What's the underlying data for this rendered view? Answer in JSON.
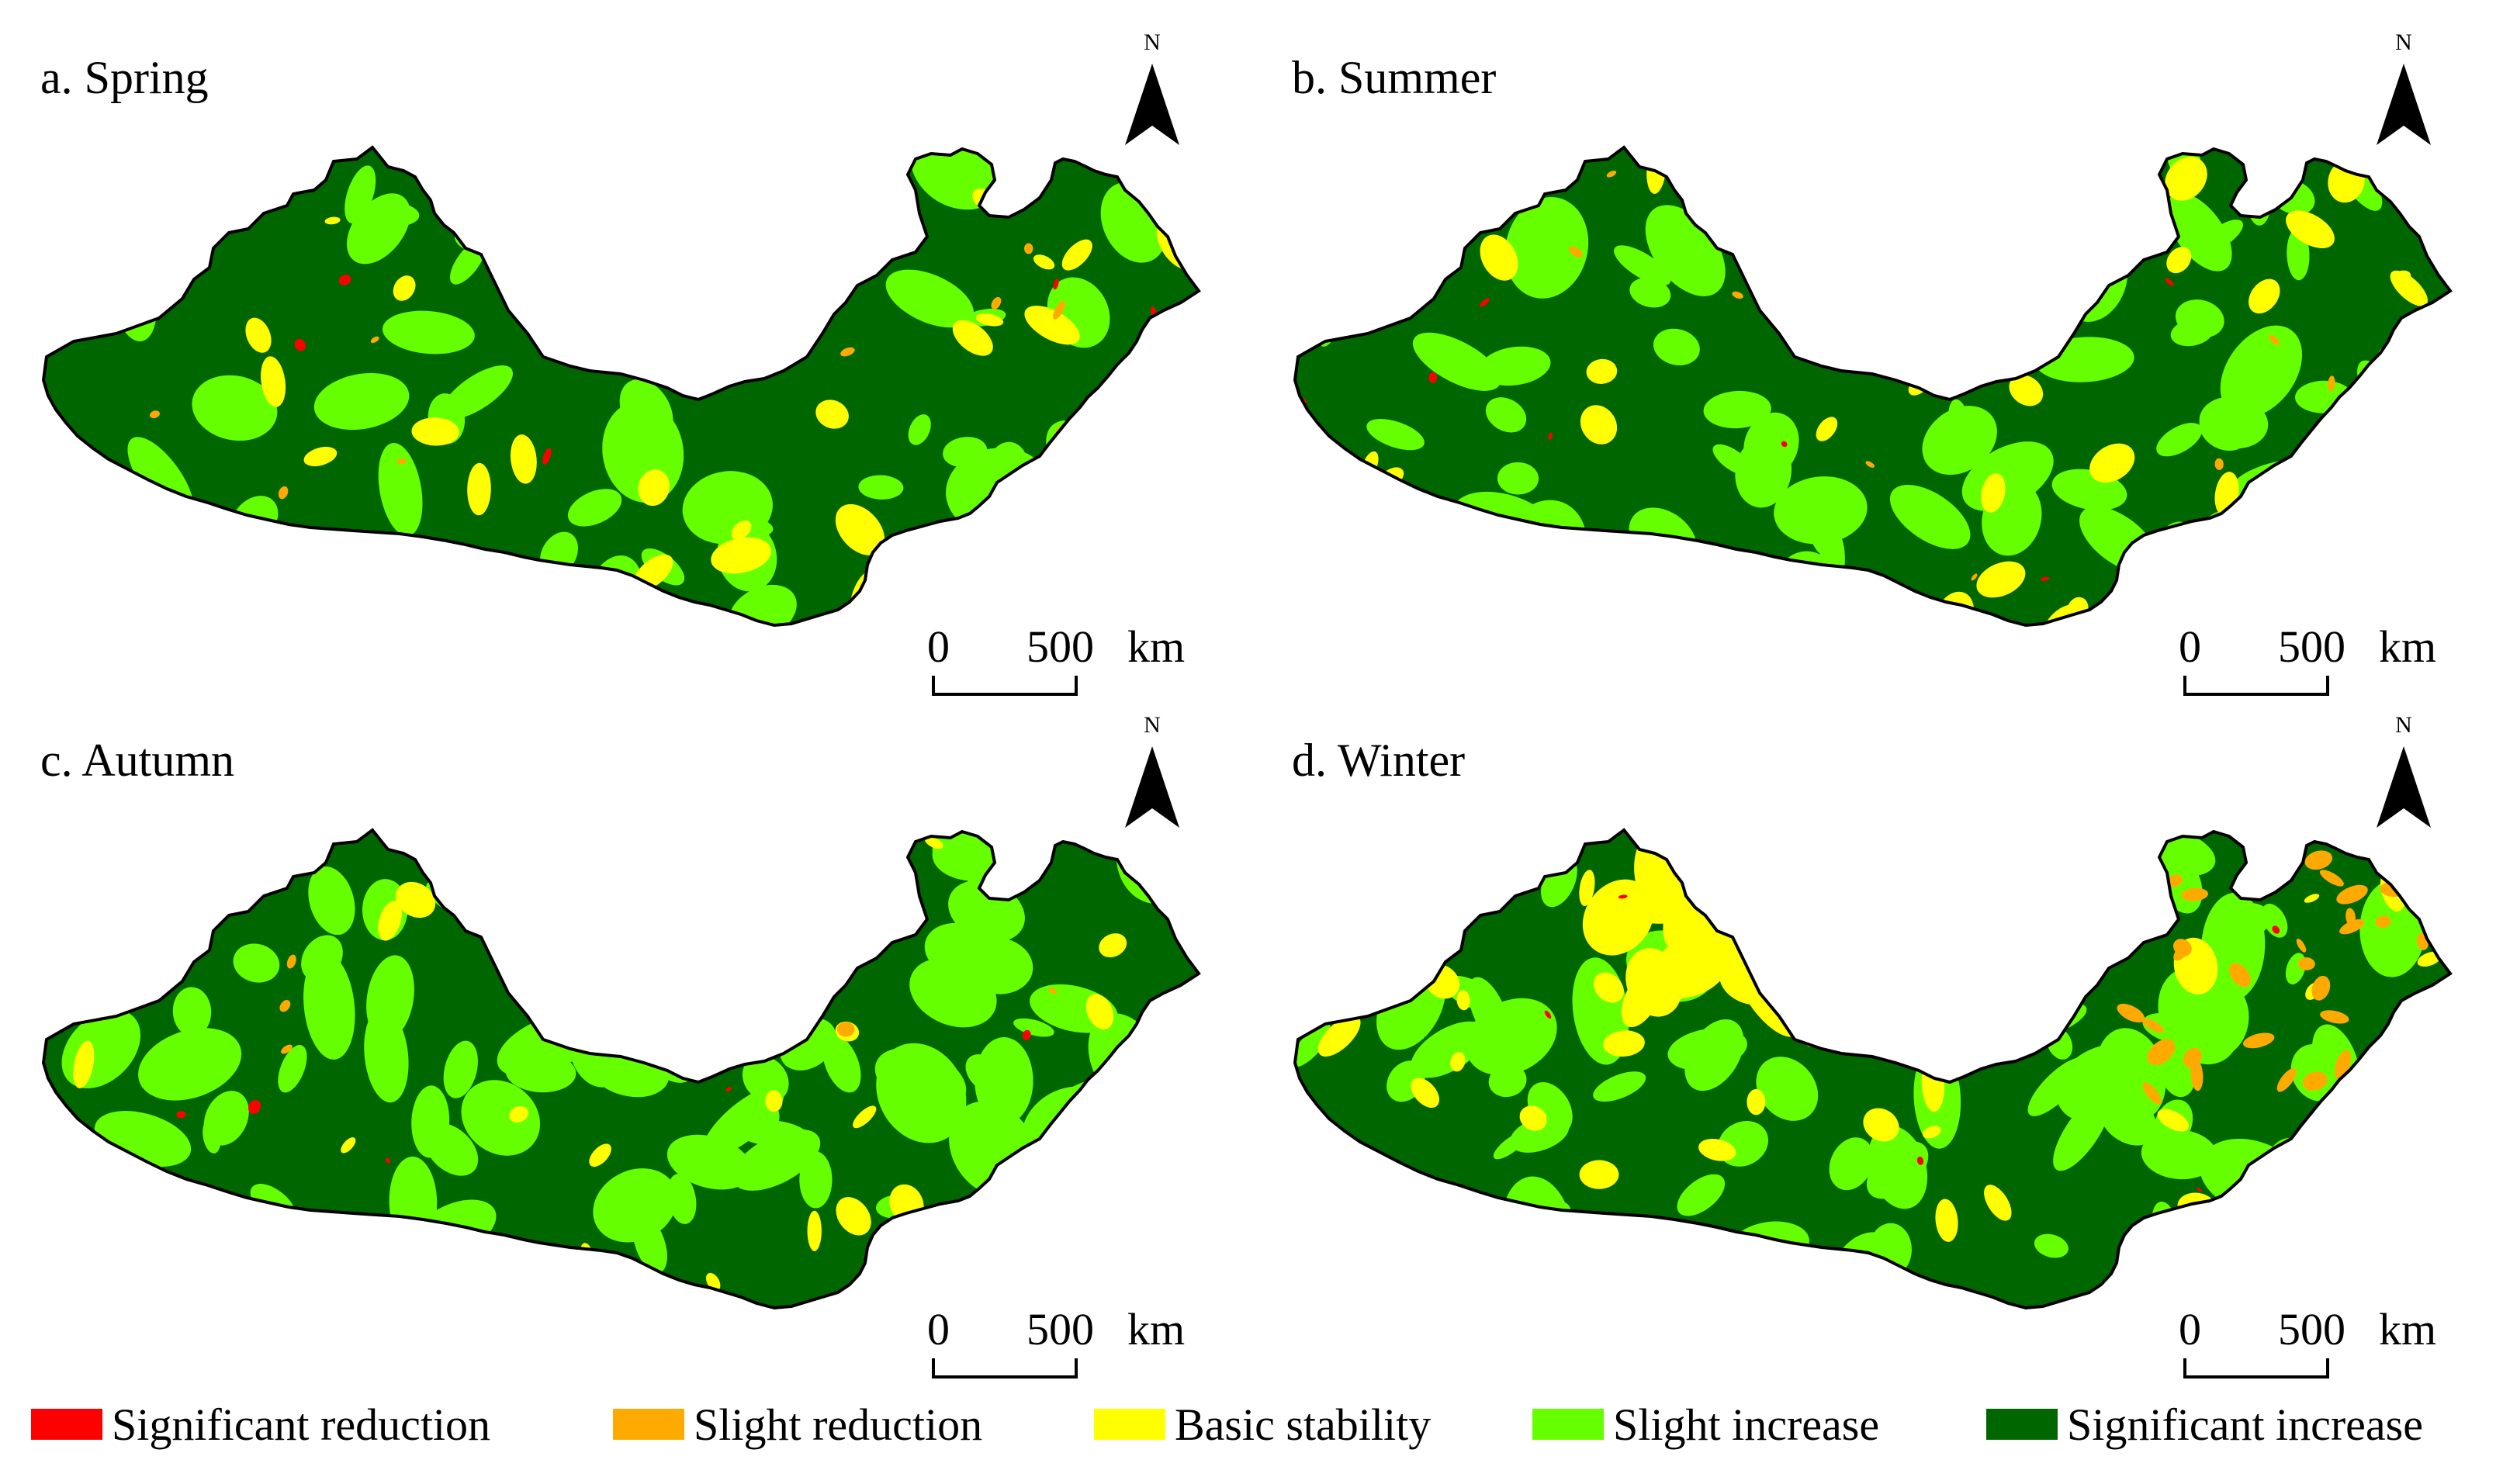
{
  "panels": [
    {
      "id": "a",
      "title": "a. Spring"
    },
    {
      "id": "b",
      "title": "b. Summer"
    },
    {
      "id": "c",
      "title": "c. Autumn"
    },
    {
      "id": "d",
      "title": "d. Winter"
    }
  ],
  "north_arrow": {
    "letter": "N"
  },
  "scale_bar": {
    "start": "0",
    "end": "500",
    "unit": "km"
  },
  "legend": {
    "items": [
      {
        "label": "Significant reduction",
        "color": "#ff0000"
      },
      {
        "label": "Slight reduction",
        "color": "#ffaa00"
      },
      {
        "label": "Basic stability",
        "color": "#ffff00"
      },
      {
        "label": "Slight increase",
        "color": "#66ff00"
      },
      {
        "label": "Significant increase",
        "color": "#006600"
      }
    ]
  },
  "colors": {
    "significant_reduction": "#ff0000",
    "slight_reduction": "#ffaa00",
    "basic_stability": "#ffff00",
    "slight_increase": "#66ff00",
    "significant_increase": "#006600",
    "outline": "#000000"
  }
}
